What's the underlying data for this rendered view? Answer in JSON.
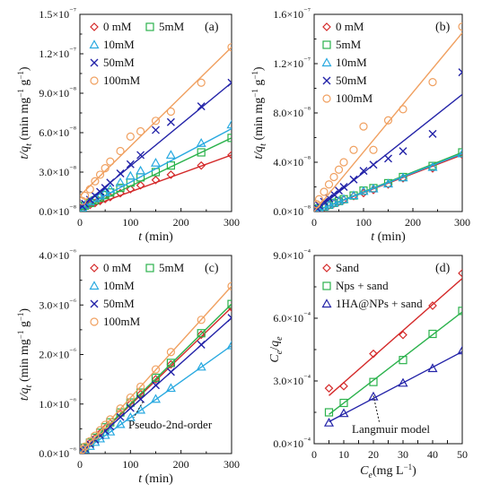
{
  "chart_data": [
    {
      "type": "scatter",
      "panel_label": "(a)",
      "xlabel": "t (min)",
      "ylabel": "t/qt (min mg⁻¹ g⁻¹)",
      "xlim": [
        0,
        300
      ],
      "ylim": [
        0,
        1.5e-07
      ],
      "x_ticks": [
        0,
        100,
        200,
        300
      ],
      "y_ticks": [
        0,
        3e-08,
        6e-08,
        9e-08,
        1.2e-07,
        1.5e-07
      ],
      "y_tick_labels": [
        "0.0×10⁻⁸",
        "3.0×10⁻⁸",
        "6.0×10⁻⁸",
        "9.0×10⁻⁸",
        "1.2×10⁻⁷",
        "1.5×10⁻⁷"
      ],
      "legend_position": "top-left, two columns",
      "series": [
        {
          "name": "0 mM",
          "marker": "diamond",
          "color": "#d42a2a",
          "x": [
            5,
            10,
            20,
            30,
            40,
            50,
            60,
            80,
            100,
            120,
            150,
            180,
            240,
            300
          ],
          "y": [
            2.5e-09,
            3.5e-09,
            5e-09,
            6.5e-09,
            8e-09,
            9.5e-09,
            1.1e-08,
            1.4e-08,
            1.7e-08,
            2e-08,
            2.4e-08,
            2.8e-08,
            3.5e-08,
            4.3e-08
          ],
          "fit": [
            [
              0,
              1e-09
            ],
            [
              300,
              4.3e-08
            ]
          ]
        },
        {
          "name": "5mM",
          "marker": "square",
          "color": "#2bb24c",
          "x": [
            5,
            10,
            20,
            30,
            40,
            50,
            60,
            80,
            100,
            120,
            150,
            180,
            240,
            300
          ],
          "y": [
            3e-09,
            4.5e-09,
            6.5e-09,
            8.5e-09,
            1.05e-08,
            1.25e-08,
            1.45e-08,
            1.8e-08,
            2.2e-08,
            2.6e-08,
            3e-08,
            3.5e-08,
            4.5e-08,
            5.6e-08
          ],
          "fit": [
            [
              0,
              1e-09
            ],
            [
              300,
              5.6e-08
            ]
          ]
        },
        {
          "name": "10mM",
          "marker": "triangle",
          "color": "#28a9e0",
          "x": [
            5,
            10,
            20,
            30,
            40,
            50,
            60,
            80,
            100,
            120,
            150,
            180,
            240,
            300
          ],
          "y": [
            3e-09,
            5e-09,
            7.5e-09,
            1e-08,
            1.2e-08,
            1.45e-08,
            1.7e-08,
            2.2e-08,
            2.7e-08,
            3.1e-08,
            3.7e-08,
            4.3e-08,
            5.2e-08,
            6.6e-08
          ],
          "fit": [
            [
              0,
              2e-09
            ],
            [
              300,
              6.3e-08
            ]
          ]
        },
        {
          "name": "50mM",
          "marker": "cross",
          "color": "#2323a8",
          "x": [
            5,
            10,
            20,
            30,
            40,
            50,
            60,
            80,
            100,
            120,
            150,
            180,
            240,
            300
          ],
          "y": [
            4e-09,
            6e-09,
            9e-09,
            1.2e-08,
            1.5e-08,
            1.8e-08,
            2.2e-08,
            2.9e-08,
            3.6e-08,
            4.3e-08,
            6.2e-08,
            6.8e-08,
            8e-08,
            9.8e-08
          ],
          "fit": [
            [
              0,
              3e-09
            ],
            [
              300,
              9.8e-08
            ]
          ]
        },
        {
          "name": "100mM",
          "marker": "circle",
          "color": "#f0a060",
          "x": [
            5,
            10,
            20,
            30,
            40,
            50,
            60,
            80,
            100,
            120,
            150,
            180,
            240,
            300
          ],
          "y": [
            8e-09,
            1.2e-08,
            1.7e-08,
            2.3e-08,
            2.8e-08,
            3.3e-08,
            3.8e-08,
            4.6e-08,
            5.7e-08,
            6.1e-08,
            6.9e-08,
            7.6e-08,
            9.8e-08,
            1.25e-07
          ],
          "fit": [
            [
              0,
              1.2e-08
            ],
            [
              300,
              1.25e-07
            ]
          ]
        }
      ]
    },
    {
      "type": "scatter",
      "panel_label": "(b)",
      "xlabel": "t (min)",
      "ylabel": "t/qt (min mg⁻¹ g⁻¹)",
      "xlim": [
        0,
        300
      ],
      "ylim": [
        0,
        1.6e-07
      ],
      "x_ticks": [
        0,
        100,
        200,
        300
      ],
      "y_ticks": [
        0,
        4e-08,
        8e-08,
        1.2e-07,
        1.6e-07
      ],
      "y_tick_labels": [
        "0.0×10⁻⁸",
        "4.0×10⁻⁸",
        "8.0×10⁻⁸",
        "1.2×10⁻⁷",
        "1.6×10⁻⁷"
      ],
      "legend_position": "top-left, two columns",
      "series": [
        {
          "name": "0 mM",
          "marker": "diamond",
          "color": "#d42a2a",
          "x": [
            5,
            10,
            20,
            30,
            40,
            50,
            60,
            80,
            100,
            120,
            150,
            180,
            240,
            300
          ],
          "y": [
            1e-09,
            2e-09,
            3.5e-09,
            5e-09,
            6.5e-09,
            8e-09,
            9.5e-09,
            1.25e-08,
            1.5e-08,
            1.75e-08,
            2.2e-08,
            2.7e-08,
            3.5e-08,
            4.6e-08
          ],
          "fit": [
            [
              0,
              0
            ],
            [
              300,
              4.6e-08
            ]
          ]
        },
        {
          "name": "5mM",
          "marker": "square",
          "color": "#2bb24c",
          "x": [
            5,
            10,
            20,
            30,
            40,
            50,
            60,
            80,
            100,
            120,
            150,
            180,
            240,
            300
          ],
          "y": [
            1.5e-09,
            2.5e-09,
            4e-09,
            5.5e-09,
            7e-09,
            8.5e-09,
            1e-08,
            1.3e-08,
            1.7e-08,
            1.9e-08,
            2.3e-08,
            2.8e-08,
            3.7e-08,
            4.8e-08
          ],
          "fit": [
            [
              0,
              0
            ],
            [
              300,
              4.8e-08
            ]
          ]
        },
        {
          "name": "10mM",
          "marker": "triangle",
          "color": "#28a9e0",
          "x": [
            5,
            10,
            20,
            30,
            40,
            50,
            60,
            80,
            100,
            120,
            150,
            180,
            240,
            300
          ],
          "y": [
            1.5e-09,
            2.5e-09,
            4e-09,
            5.5e-09,
            7e-09,
            8.5e-09,
            1e-08,
            1.3e-08,
            1.65e-08,
            1.85e-08,
            2.25e-08,
            2.75e-08,
            3.6e-08,
            4.7e-08
          ],
          "fit": [
            [
              0,
              0
            ],
            [
              300,
              4.7e-08
            ]
          ]
        },
        {
          "name": "50mM",
          "marker": "cross",
          "color": "#2323a8",
          "x": [
            5,
            10,
            20,
            30,
            40,
            50,
            60,
            80,
            100,
            120,
            150,
            180,
            240,
            300
          ],
          "y": [
            3e-09,
            5e-09,
            8e-09,
            1.1e-08,
            1.4e-08,
            1.7e-08,
            2e-08,
            2.6e-08,
            3.3e-08,
            3.8e-08,
            4.3e-08,
            4.9e-08,
            6.3e-08,
            1.13e-07
          ],
          "fit": [
            [
              0,
              0
            ],
            [
              300,
              9.5e-08
            ]
          ]
        },
        {
          "name": "100mM",
          "marker": "circle",
          "color": "#f0a060",
          "x": [
            5,
            10,
            20,
            30,
            40,
            50,
            60,
            80,
            100,
            120,
            150,
            180,
            240,
            300
          ],
          "y": [
            6e-09,
            1e-08,
            1.6e-08,
            2.2e-08,
            2.8e-08,
            3.4e-08,
            4e-08,
            5e-08,
            6.9e-08,
            5e-08,
            7.4e-08,
            8.3e-08,
            1.05e-07,
            1.5e-07
          ],
          "fit": [
            [
              0,
              0
            ],
            [
              300,
              1.45e-07
            ]
          ]
        }
      ]
    },
    {
      "type": "scatter",
      "panel_label": "(c)",
      "xlabel": "t (min)",
      "ylabel": "t/qt (min mg⁻¹ g⁻¹)",
      "xlim": [
        0,
        300
      ],
      "ylim": [
        0,
        4e-06
      ],
      "x_ticks": [
        0,
        100,
        200,
        300
      ],
      "y_ticks": [
        0,
        1e-06,
        2e-06,
        3e-06,
        4e-06
      ],
      "y_tick_labels": [
        "0.0×10⁻⁶",
        "1.0×10⁻⁶",
        "2.0×10⁻⁶",
        "3.0×10⁻⁶",
        "4.0×10⁻⁶"
      ],
      "legend_position": "top-left, two columns",
      "annotation": "Pseudo-2nd-order",
      "series": [
        {
          "name": "0 mM",
          "marker": "diamond",
          "color": "#d42a2a",
          "x": [
            5,
            10,
            20,
            30,
            40,
            50,
            60,
            80,
            100,
            120,
            150,
            180,
            240,
            300
          ],
          "y": [
            6e-08,
            1.1e-07,
            2.1e-07,
            3.1e-07,
            4.1e-07,
            5.1e-07,
            6.1e-07,
            8.1e-07,
            1e-06,
            1.2e-06,
            1.5e-06,
            1.8e-06,
            2.4e-06,
            2.95e-06
          ],
          "fit": [
            [
              0,
              0
            ],
            [
              300,
              2.95e-06
            ]
          ]
        },
        {
          "name": "5mM",
          "marker": "square",
          "color": "#2bb24c",
          "x": [
            5,
            10,
            20,
            30,
            40,
            50,
            60,
            80,
            100,
            120,
            150,
            180,
            240,
            300
          ],
          "y": [
            7e-08,
            1.2e-07,
            2.2e-07,
            3.2e-07,
            4.2e-07,
            5.3e-07,
            6.3e-07,
            8.3e-07,
            1.03e-06,
            1.23e-06,
            1.53e-06,
            1.83e-06,
            2.43e-06,
            3.02e-06
          ],
          "fit": [
            [
              0,
              0
            ],
            [
              300,
              3.02e-06
            ]
          ]
        },
        {
          "name": "10mM",
          "marker": "triangle",
          "color": "#28a9e0",
          "x": [
            5,
            10,
            20,
            30,
            40,
            50,
            60,
            80,
            100,
            120,
            150,
            180,
            240,
            300
          ],
          "y": [
            4e-08,
            8e-08,
            1.5e-07,
            2.3e-07,
            3e-07,
            3.7e-07,
            4.4e-07,
            5.9e-07,
            7.3e-07,
            8.8e-07,
            1.1e-06,
            1.32e-06,
            1.75e-06,
            2.18e-06
          ],
          "fit": [
            [
              0,
              0
            ],
            [
              300,
              2.18e-06
            ]
          ]
        },
        {
          "name": "50mM",
          "marker": "cross",
          "color": "#2323a8",
          "x": [
            5,
            10,
            20,
            30,
            40,
            50,
            60,
            80,
            100,
            120,
            150,
            180,
            240,
            300
          ],
          "y": [
            6e-08,
            1e-07,
            1.9e-07,
            2.8e-07,
            3.7e-07,
            4.6e-07,
            5.5e-07,
            7.4e-07,
            9.2e-07,
            1.1e-06,
            1.38e-06,
            1.65e-06,
            2.2e-06,
            2.74e-06
          ],
          "fit": [
            [
              0,
              0
            ],
            [
              300,
              2.74e-06
            ]
          ]
        },
        {
          "name": "100mM",
          "marker": "circle",
          "color": "#f0a060",
          "x": [
            5,
            10,
            20,
            30,
            40,
            50,
            60,
            80,
            100,
            120,
            150,
            180,
            240,
            300
          ],
          "y": [
            8e-08,
            1.4e-07,
            2.5e-07,
            3.6e-07,
            4.7e-07,
            5.8e-07,
            6.9e-07,
            9.1e-07,
            1.13e-06,
            1.35e-06,
            1.7e-06,
            2.05e-06,
            2.7e-06,
            3.38e-06
          ],
          "fit": [
            [
              0,
              0
            ],
            [
              300,
              3.38e-06
            ]
          ]
        }
      ]
    },
    {
      "type": "scatter",
      "panel_label": "(d)",
      "xlabel": "Ce(mg L⁻¹)",
      "ylabel": "Ce/qe",
      "xlim": [
        0,
        50
      ],
      "ylim": [
        0,
        0.0009
      ],
      "x_ticks": [
        0,
        5,
        10,
        15,
        20,
        25,
        30,
        35,
        40,
        45,
        50
      ],
      "y_ticks": [
        0,
        0.0003,
        0.0006,
        0.0009
      ],
      "y_tick_labels": [
        "0.0×10⁻⁴",
        "3.0×10⁻⁴",
        "6.0×10⁻⁴",
        "9.0×10⁻⁴"
      ],
      "legend_position": "top-left",
      "annotation": "Langmuir model",
      "series": [
        {
          "name": "Sand",
          "marker": "diamond",
          "color": "#d42a2a",
          "x": [
            5,
            10,
            20,
            30,
            40,
            50
          ],
          "y": [
            0.000265,
            0.000275,
            0.00043,
            0.00052,
            0.00066,
            0.000815
          ],
          "fit": [
            [
              5,
              0.00023
            ],
            [
              50,
              0.00079
            ]
          ]
        },
        {
          "name": "Nps + sand",
          "marker": "square",
          "color": "#2bb24c",
          "x": [
            5,
            10,
            20,
            30,
            40,
            50
          ],
          "y": [
            0.00015,
            0.000195,
            0.000295,
            0.0004,
            0.000525,
            0.000635
          ],
          "fit": [
            [
              5,
              0.00014
            ],
            [
              50,
              0.00063
            ]
          ]
        },
        {
          "name": "1HA@NPs + sand",
          "marker": "triangle",
          "color": "#2323a8",
          "x": [
            5,
            10,
            20,
            30,
            40,
            50
          ],
          "y": [
            0.0001,
            0.000145,
            0.000225,
            0.00029,
            0.00036,
            0.000445
          ],
          "fit": [
            [
              5,
              0.000105
            ],
            [
              50,
              0.00044
            ]
          ]
        }
      ]
    }
  ]
}
